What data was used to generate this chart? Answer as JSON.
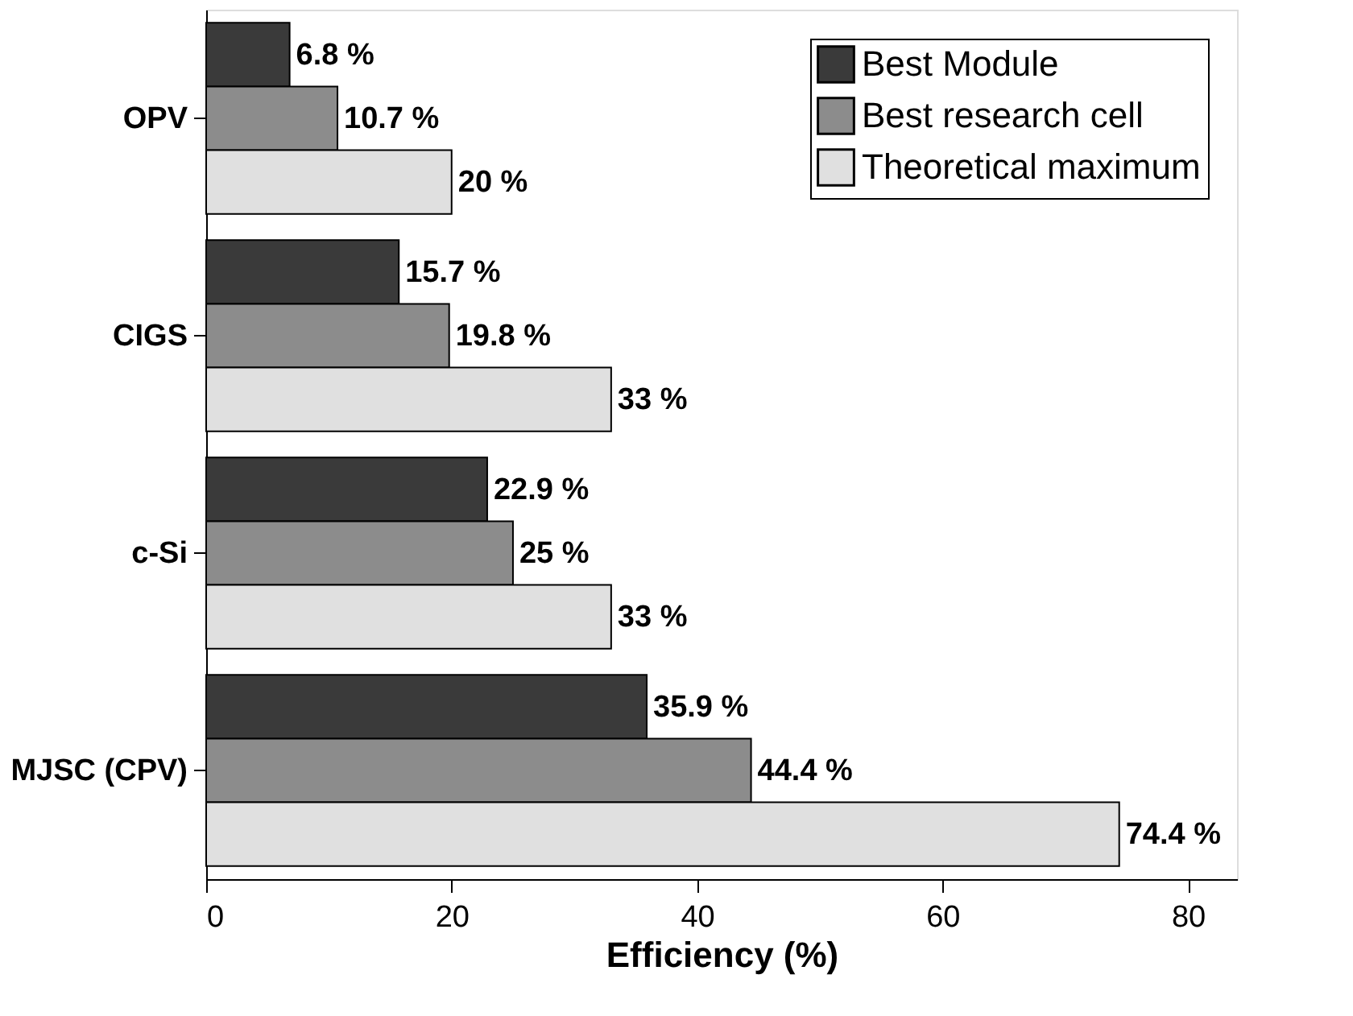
{
  "chart_data": {
    "type": "bar",
    "orientation": "horizontal",
    "xlabel": "Efficiency (%)",
    "categories": [
      "OPV",
      "CIGS",
      "c-Si",
      "MJSC (CPV)"
    ],
    "series": [
      {
        "name": "Best Module",
        "color": "#3a3a3a",
        "values": [
          6.8,
          15.7,
          22.9,
          35.9
        ],
        "value_labels": [
          "6.8 %",
          "15.7 %",
          "22.9 %",
          "35.9 %"
        ]
      },
      {
        "name": "Best research cell",
        "color": "#8c8c8c",
        "values": [
          10.7,
          19.8,
          25,
          44.4
        ],
        "value_labels": [
          "10.7 %",
          "19.8 %",
          "25 %",
          "44.4 %"
        ]
      },
      {
        "name": "Theoretical maximum",
        "color": "#e0e0e0",
        "values": [
          20,
          33,
          33,
          74.4
        ],
        "value_labels": [
          "20 %",
          "33 %",
          "33 %",
          "74.4 %"
        ]
      }
    ],
    "xlim": [
      0,
      84
    ],
    "xticks": [
      0,
      20,
      40,
      60,
      80
    ],
    "legend": "top right",
    "grid": false
  }
}
